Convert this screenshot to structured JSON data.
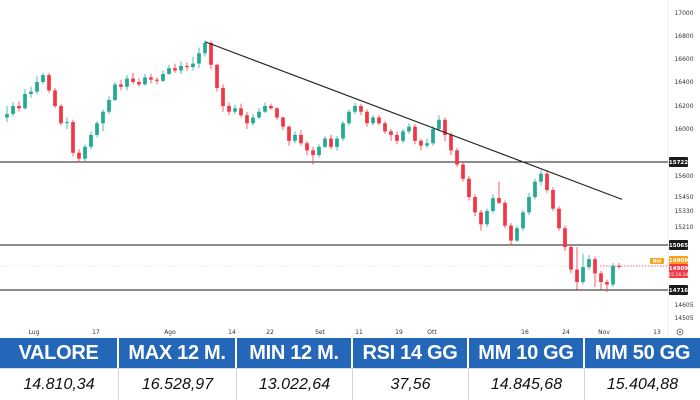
{
  "chart_data": {
    "type": "candlestick",
    "x_labels": [
      "Lug",
      "17",
      "Ago",
      "14",
      "22",
      "Set",
      "11",
      "19",
      "Ott",
      "16",
      "24",
      "Nov",
      "13"
    ],
    "y_ticks": [
      17000,
      16800,
      16600,
      16400,
      16200,
      16000,
      15600,
      15450,
      15330,
      15210,
      14605,
      14505
    ],
    "levels": [
      {
        "label": "15722",
        "value": 15722
      },
      {
        "label": "15065",
        "value": 15065
      },
      {
        "label": "14716",
        "value": 14716
      }
    ],
    "current_price": {
      "line1": "14909",
      "line2": "14909",
      "line3": "15:16:34",
      "tag": "Bid",
      "value": 14909
    },
    "trendline": {
      "start_value": 16750,
      "end_value": 15430
    },
    "candles": [
      [
        16100,
        16130,
        16060,
        16200
      ],
      [
        16130,
        16200,
        16110,
        16230
      ],
      [
        16200,
        16180,
        16150,
        16240
      ],
      [
        16180,
        16300,
        16170,
        16340
      ],
      [
        16300,
        16320,
        16270,
        16360
      ],
      [
        16320,
        16400,
        16300,
        16450
      ],
      [
        16400,
        16460,
        16380,
        16480
      ],
      [
        16460,
        16330,
        16310,
        16480
      ],
      [
        16330,
        16200,
        16180,
        16350
      ],
      [
        16200,
        16050,
        16030,
        16220
      ],
      [
        16050,
        16060,
        16000,
        16100
      ],
      [
        16060,
        15800,
        15770,
        16080
      ],
      [
        15800,
        15750,
        15720,
        15830
      ],
      [
        15750,
        15850,
        15730,
        15870
      ],
      [
        15850,
        15950,
        15830,
        15980
      ],
      [
        15950,
        16050,
        15930,
        16070
      ],
      [
        16050,
        16150,
        15980,
        16170
      ],
      [
        16150,
        16250,
        16130,
        16280
      ],
      [
        16250,
        16380,
        16240,
        16400
      ],
      [
        16380,
        16360,
        16330,
        16420
      ],
      [
        16360,
        16430,
        16330,
        16460
      ],
      [
        16430,
        16400,
        16380,
        16480
      ],
      [
        16400,
        16380,
        16360,
        16430
      ],
      [
        16380,
        16440,
        16370,
        16470
      ],
      [
        16440,
        16420,
        16390,
        16470
      ],
      [
        16420,
        16410,
        16380,
        16440
      ],
      [
        16410,
        16470,
        16400,
        16500
      ],
      [
        16470,
        16520,
        16460,
        16550
      ],
      [
        16520,
        16500,
        16480,
        16560
      ],
      [
        16500,
        16540,
        16470,
        16580
      ],
      [
        16540,
        16530,
        16500,
        16570
      ],
      [
        16530,
        16560,
        16500,
        16620
      ],
      [
        16560,
        16650,
        16520,
        16700
      ],
      [
        16650,
        16740,
        16620,
        16760
      ],
      [
        16740,
        16550,
        16510,
        16760
      ],
      [
        16550,
        16350,
        16320,
        16560
      ],
      [
        16350,
        16200,
        16150,
        16380
      ],
      [
        16200,
        16150,
        16120,
        16230
      ],
      [
        16150,
        16180,
        16130,
        16210
      ],
      [
        16180,
        16120,
        16100,
        16220
      ],
      [
        16120,
        16050,
        16000,
        16150
      ],
      [
        16050,
        16100,
        16030,
        16130
      ],
      [
        16100,
        16150,
        16090,
        16180
      ],
      [
        16150,
        16200,
        16140,
        16230
      ],
      [
        16200,
        16180,
        16170,
        16220
      ],
      [
        16180,
        16100,
        16080,
        16190
      ],
      [
        16100,
        16020,
        15990,
        16110
      ],
      [
        16020,
        15900,
        15860,
        16030
      ],
      [
        15900,
        15950,
        15880,
        15980
      ],
      [
        15950,
        15880,
        15860,
        15990
      ],
      [
        15880,
        15820,
        15780,
        15900
      ],
      [
        15820,
        15780,
        15700,
        15850
      ],
      [
        15780,
        15850,
        15760,
        15870
      ],
      [
        15850,
        15920,
        15840,
        15940
      ],
      [
        15920,
        15850,
        15830,
        15950
      ],
      [
        15850,
        15920,
        15820,
        15940
      ],
      [
        15920,
        16050,
        15900,
        16070
      ],
      [
        16050,
        16150,
        16030,
        16170
      ],
      [
        16150,
        16200,
        16130,
        16230
      ],
      [
        16200,
        16150,
        16120,
        16220
      ],
      [
        16150,
        16050,
        16020,
        16170
      ],
      [
        16050,
        16100,
        16030,
        16120
      ],
      [
        16100,
        16050,
        16030,
        16120
      ],
      [
        16050,
        15980,
        15960,
        16070
      ],
      [
        15980,
        15950,
        15900,
        16000
      ],
      [
        15950,
        15900,
        15870,
        15980
      ],
      [
        15900,
        15980,
        15880,
        16000
      ],
      [
        15980,
        16020,
        15960,
        16050
      ],
      [
        16020,
        15900,
        15870,
        16040
      ],
      [
        15900,
        15860,
        15820,
        15920
      ],
      [
        15860,
        15880,
        15840,
        15920
      ],
      [
        15880,
        16000,
        15860,
        16030
      ],
      [
        16000,
        16080,
        15980,
        16120
      ],
      [
        16080,
        15950,
        15900,
        16100
      ],
      [
        15950,
        15820,
        15780,
        15970
      ],
      [
        15820,
        15700,
        15680,
        15840
      ],
      [
        15700,
        15580,
        15560,
        15720
      ],
      [
        15580,
        15450,
        15420,
        15600
      ],
      [
        15450,
        15320,
        15290,
        15470
      ],
      [
        15320,
        15230,
        15180,
        15340
      ],
      [
        15230,
        15330,
        15210,
        15350
      ],
      [
        15330,
        15440,
        15310,
        15470
      ],
      [
        15440,
        15400,
        15390,
        15560
      ],
      [
        15400,
        15220,
        15200,
        15420
      ],
      [
        15220,
        15100,
        15060,
        15240
      ],
      [
        15100,
        15200,
        15090,
        15220
      ],
      [
        15200,
        15320,
        15180,
        15340
      ],
      [
        15320,
        15450,
        15300,
        15480
      ],
      [
        15450,
        15560,
        15430,
        15580
      ],
      [
        15560,
        15620,
        15530,
        15650
      ],
      [
        15620,
        15500,
        15480,
        15640
      ],
      [
        15500,
        15350,
        15330,
        15520
      ],
      [
        15350,
        15200,
        15180,
        15370
      ],
      [
        15200,
        15050,
        15020,
        15220
      ],
      [
        15050,
        14880,
        14850,
        15070
      ],
      [
        14880,
        14780,
        14720,
        15050
      ],
      [
        14780,
        14900,
        14760,
        15000
      ],
      [
        14900,
        14960,
        14880,
        14990
      ],
      [
        14960,
        14850,
        14740,
        14980
      ],
      [
        14850,
        14780,
        14720,
        14870
      ],
      [
        14780,
        14760,
        14700,
        14800
      ],
      [
        14760,
        14910,
        14740,
        14930
      ],
      [
        14910,
        14909,
        14890,
        14930
      ]
    ]
  },
  "stats": {
    "headers": [
      "VALORE",
      "MAX 12 M.",
      "MIN 12 M.",
      "RSI 14 GG",
      "MM 10 GG",
      "MM 50 GG"
    ],
    "values": [
      "14.810,34",
      "16.528,97",
      "13.022,64",
      "37,56",
      "14.845,68",
      "15.404,88"
    ]
  },
  "colors": {
    "up": "#22ab94",
    "down": "#f23645",
    "header_bg": "#2466b8",
    "line": "#1b1b1b",
    "price_tag": "#f23645",
    "bid_tag": "#f7a21b"
  }
}
